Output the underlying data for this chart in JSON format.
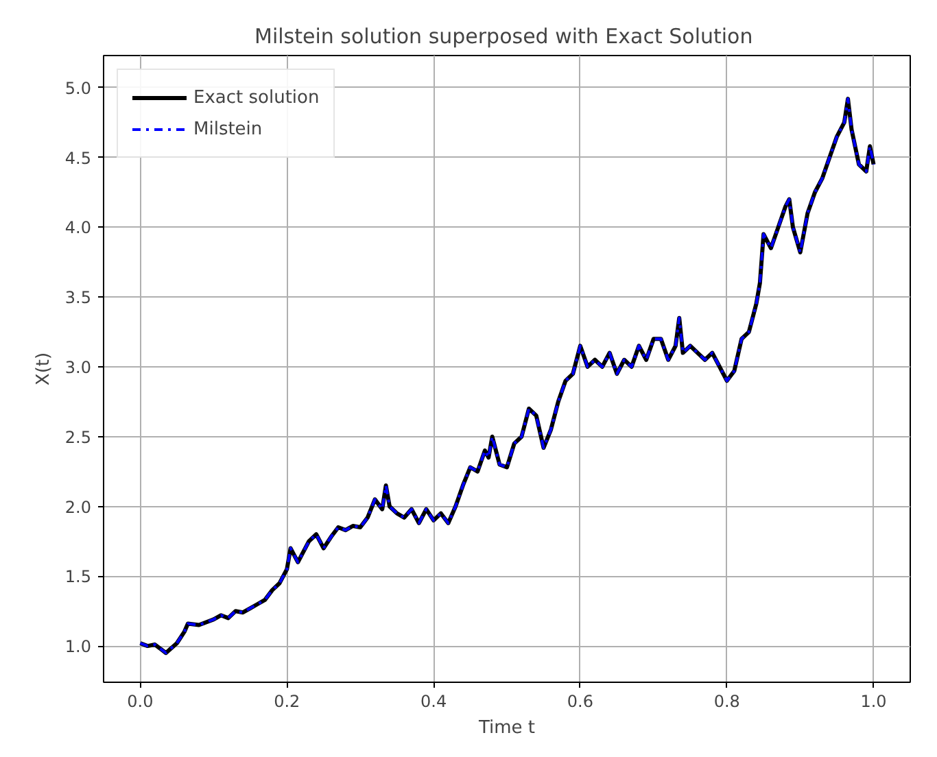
{
  "chart_data": {
    "type": "line",
    "title": "Milstein solution  superposed with Exact Solution",
    "xlabel": "Time t",
    "ylabel": "X(t)",
    "x": [
      0.0,
      0.01,
      0.02,
      0.03,
      0.035,
      0.05,
      0.06,
      0.065,
      0.08,
      0.1,
      0.11,
      0.12,
      0.13,
      0.14,
      0.15,
      0.16,
      0.17,
      0.18,
      0.19,
      0.2,
      0.205,
      0.215,
      0.23,
      0.24,
      0.25,
      0.26,
      0.27,
      0.28,
      0.29,
      0.3,
      0.31,
      0.32,
      0.33,
      0.335,
      0.34,
      0.35,
      0.36,
      0.37,
      0.38,
      0.39,
      0.4,
      0.41,
      0.42,
      0.43,
      0.44,
      0.45,
      0.46,
      0.47,
      0.475,
      0.48,
      0.49,
      0.5,
      0.51,
      0.52,
      0.53,
      0.54,
      0.55,
      0.56,
      0.57,
      0.58,
      0.59,
      0.6,
      0.61,
      0.62,
      0.63,
      0.64,
      0.65,
      0.66,
      0.67,
      0.68,
      0.69,
      0.7,
      0.71,
      0.72,
      0.73,
      0.735,
      0.74,
      0.75,
      0.76,
      0.77,
      0.78,
      0.79,
      0.8,
      0.81,
      0.82,
      0.83,
      0.84,
      0.845,
      0.85,
      0.86,
      0.87,
      0.88,
      0.885,
      0.89,
      0.9,
      0.91,
      0.92,
      0.93,
      0.94,
      0.95,
      0.96,
      0.965,
      0.97,
      0.98,
      0.99,
      0.995,
      1.0
    ],
    "series": [
      {
        "name": "Exact solution",
        "color": "#000000",
        "line_style": "solid",
        "values": [
          1.02,
          1.0,
          1.01,
          0.97,
          0.95,
          1.02,
          1.1,
          1.16,
          1.15,
          1.19,
          1.22,
          1.2,
          1.25,
          1.24,
          1.27,
          1.3,
          1.33,
          1.4,
          1.45,
          1.55,
          1.7,
          1.6,
          1.75,
          1.8,
          1.7,
          1.78,
          1.85,
          1.83,
          1.86,
          1.85,
          1.92,
          2.05,
          1.98,
          2.15,
          2.0,
          1.95,
          1.92,
          1.98,
          1.88,
          1.98,
          1.9,
          1.95,
          1.88,
          2.0,
          2.15,
          2.28,
          2.25,
          2.4,
          2.35,
          2.5,
          2.3,
          2.28,
          2.45,
          2.5,
          2.7,
          2.65,
          2.42,
          2.55,
          2.75,
          2.9,
          2.95,
          3.15,
          3.0,
          3.05,
          3.0,
          3.1,
          2.95,
          3.05,
          3.0,
          3.15,
          3.05,
          3.2,
          3.2,
          3.05,
          3.15,
          3.35,
          3.1,
          3.15,
          3.1,
          3.05,
          3.1,
          3.0,
          2.9,
          2.97,
          3.2,
          3.25,
          3.45,
          3.6,
          3.95,
          3.85,
          4.0,
          4.15,
          4.2,
          4.0,
          3.82,
          4.1,
          4.25,
          4.35,
          4.5,
          4.65,
          4.75,
          4.92,
          4.7,
          4.45,
          4.4,
          4.58,
          4.45
        ]
      },
      {
        "name": "Milstein",
        "color": "#0000ff",
        "line_style": "dashdot",
        "values": [
          1.02,
          1.0,
          1.01,
          0.97,
          0.95,
          1.02,
          1.1,
          1.16,
          1.15,
          1.19,
          1.22,
          1.2,
          1.25,
          1.24,
          1.27,
          1.3,
          1.33,
          1.4,
          1.45,
          1.55,
          1.7,
          1.6,
          1.75,
          1.8,
          1.7,
          1.78,
          1.85,
          1.83,
          1.86,
          1.85,
          1.92,
          2.05,
          1.98,
          2.15,
          2.0,
          1.95,
          1.92,
          1.98,
          1.88,
          1.98,
          1.9,
          1.95,
          1.88,
          2.0,
          2.15,
          2.28,
          2.25,
          2.4,
          2.35,
          2.5,
          2.3,
          2.28,
          2.45,
          2.5,
          2.7,
          2.65,
          2.42,
          2.55,
          2.75,
          2.9,
          2.95,
          3.15,
          3.0,
          3.05,
          3.0,
          3.1,
          2.95,
          3.05,
          3.0,
          3.15,
          3.05,
          3.2,
          3.2,
          3.05,
          3.15,
          3.35,
          3.1,
          3.15,
          3.1,
          3.05,
          3.1,
          3.0,
          2.9,
          2.97,
          3.2,
          3.25,
          3.45,
          3.6,
          3.95,
          3.85,
          4.0,
          4.15,
          4.2,
          4.0,
          3.82,
          4.1,
          4.25,
          4.35,
          4.5,
          4.65,
          4.75,
          4.92,
          4.7,
          4.45,
          4.4,
          4.58,
          4.45
        ]
      }
    ],
    "xlim": [
      -0.05,
      1.05
    ],
    "ylim": [
      0.74,
      5.23
    ],
    "xticks": [
      {
        "value": 0,
        "label": "0.0"
      },
      {
        "value": 0.2,
        "label": "0.2"
      },
      {
        "value": 0.4,
        "label": "0.4"
      },
      {
        "value": 0.6,
        "label": "0.6"
      },
      {
        "value": 0.8,
        "label": "0.8"
      },
      {
        "value": 1,
        "label": "1.0"
      }
    ],
    "yticks": [
      {
        "value": 1,
        "label": "1.0"
      },
      {
        "value": 1.5,
        "label": "1.5"
      },
      {
        "value": 2,
        "label": "2.0"
      },
      {
        "value": 2.5,
        "label": "2.5"
      },
      {
        "value": 3,
        "label": "3.0"
      },
      {
        "value": 3.5,
        "label": "3.5"
      },
      {
        "value": 4,
        "label": "4.0"
      },
      {
        "value": 4.5,
        "label": "4.5"
      },
      {
        "value": 5,
        "label": "5.0"
      }
    ],
    "grid": true,
    "legend": "top left"
  }
}
